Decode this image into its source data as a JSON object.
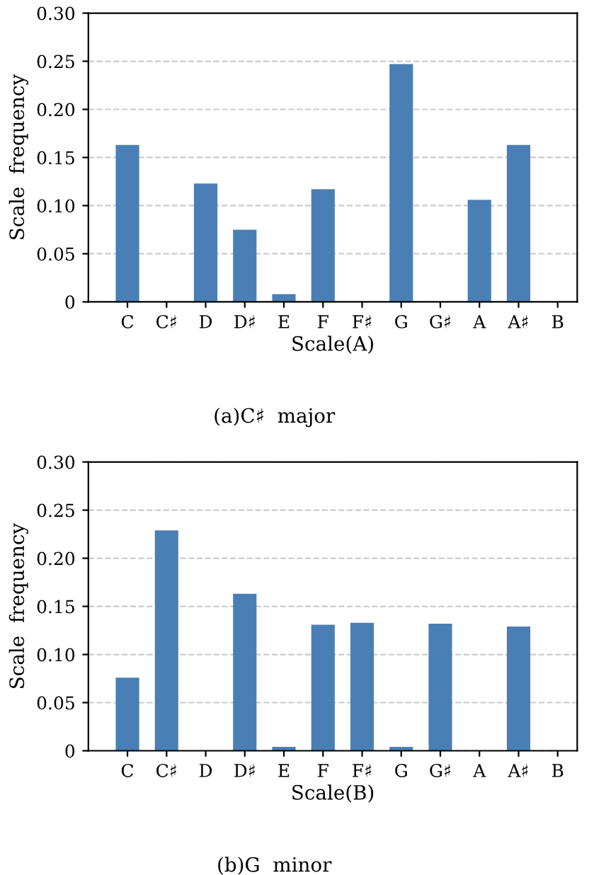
{
  "chart_data": [
    {
      "type": "bar",
      "categories": [
        "C",
        "C♯",
        "D",
        "D♯",
        "E",
        "F",
        "F♯",
        "G",
        "G♯",
        "A",
        "A♯",
        "B"
      ],
      "values": [
        0.163,
        0,
        0.123,
        0.075,
        0.008,
        0.117,
        0,
        0.247,
        0,
        0.106,
        0.163,
        0
      ],
      "color": "#4a7fb5",
      "xlabel": "Scale(A)",
      "ylabel": "Scale  frequency",
      "ylim": [
        0,
        0.3
      ],
      "yticks": [
        {
          "value": 0,
          "label": "0"
        },
        0.05,
        {
          "value": 0.1,
          "label": "0.10"
        },
        0.15,
        {
          "value": 0.2,
          "label": "0.20"
        },
        0.25,
        {
          "value": 0.3,
          "label": "0.30"
        }
      ],
      "grid": "y",
      "annotations": [
        "(a)C♯  major"
      ]
    },
    {
      "type": "bar",
      "categories": [
        "C",
        "C♯",
        "D",
        "D♯",
        "E",
        "F",
        "F♯",
        "G",
        "G♯",
        "A",
        "A♯",
        "B"
      ],
      "values": [
        0.076,
        0.229,
        0,
        0.163,
        0.004,
        0.131,
        0.133,
        0.004,
        0.132,
        0,
        0.129,
        0
      ],
      "color": "#4a7fb5",
      "xlabel": "Scale(B)",
      "ylabel": "Scale  frequency",
      "ylim": [
        0,
        0.3
      ],
      "yticks": [
        {
          "value": 0,
          "label": "0"
        },
        0.05,
        {
          "value": 0.1,
          "label": "0.10"
        },
        0.15,
        {
          "value": 0.2,
          "label": "0.20"
        },
        0.25,
        {
          "value": 0.3,
          "label": "0.30"
        }
      ],
      "grid": "y",
      "annotations": [
        "(b)G  minor"
      ]
    }
  ]
}
